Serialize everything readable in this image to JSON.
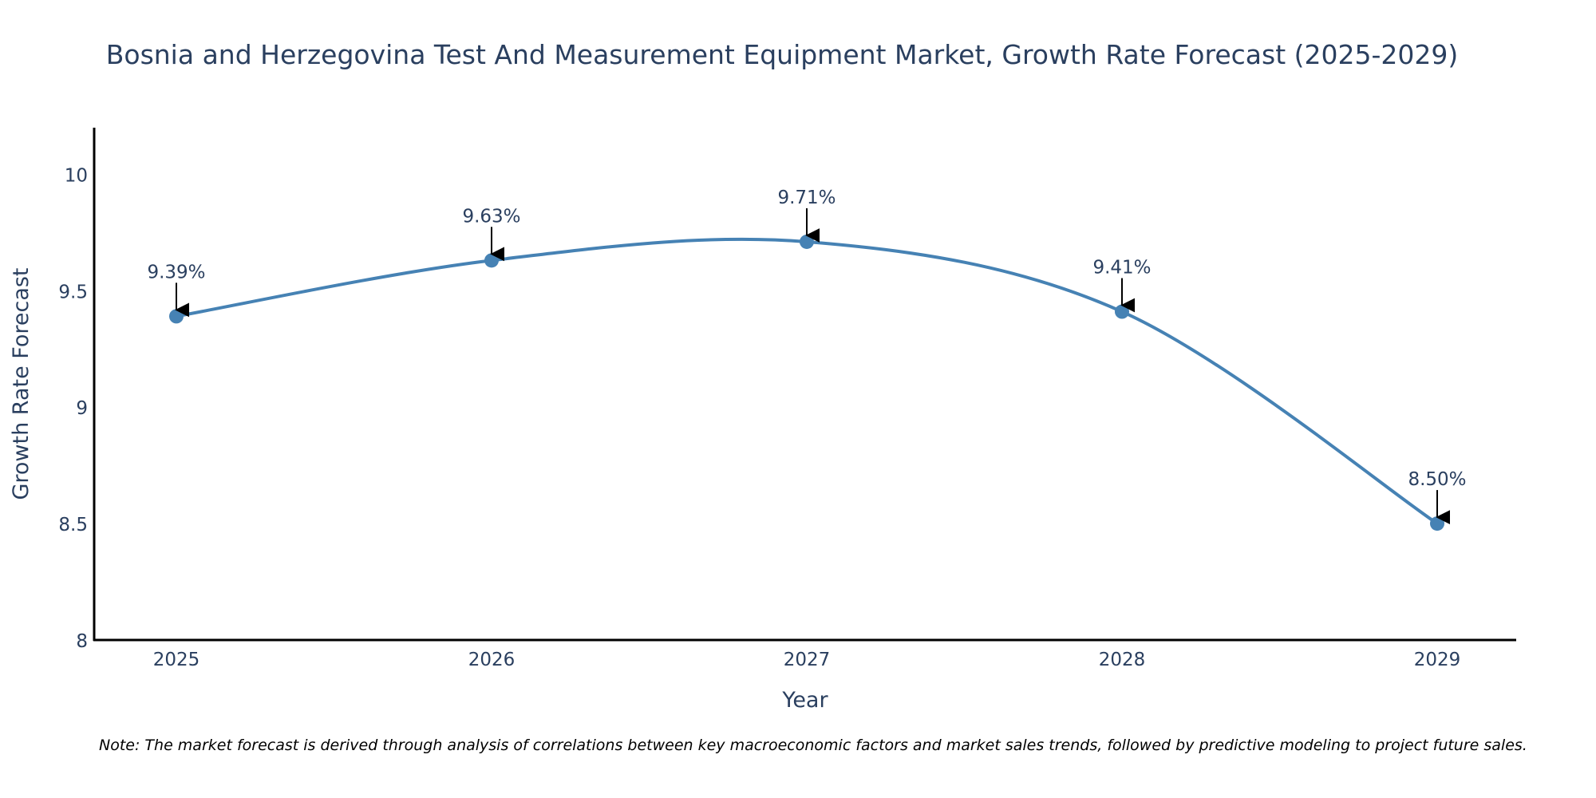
{
  "colors": {
    "line": "#4682b4",
    "text": "#2a3f5f",
    "axis": "#000000",
    "arrow": "#000000",
    "background": "#ffffff"
  },
  "chart_data": {
    "type": "line",
    "title": "Bosnia and Herzegovina Test And Measurement Equipment Market, Growth Rate Forecast (2025-2029)",
    "xlabel": "Year",
    "ylabel": "Growth Rate Forecast",
    "categories": [
      "2025",
      "2026",
      "2027",
      "2028",
      "2029"
    ],
    "series": [
      {
        "name": "Growth Rate Forecast",
        "values": [
          9.39,
          9.63,
          9.71,
          9.41,
          8.5
        ],
        "labels": [
          "9.39%",
          "9.63%",
          "9.71%",
          "9.41%",
          "8.50%"
        ]
      }
    ],
    "yticks": [
      8,
      8.5,
      9,
      9.5,
      10
    ],
    "ytick_labels": [
      "8",
      "8.5",
      "9",
      "9.5",
      "10"
    ],
    "ylim": [
      8,
      10.2
    ],
    "grid": false,
    "line_shape": "spline",
    "legend": "none"
  },
  "note": "Note: The market forecast is derived through analysis of correlations between key macroeconomic factors and market sales trends, followed by predictive modeling to project future sales."
}
